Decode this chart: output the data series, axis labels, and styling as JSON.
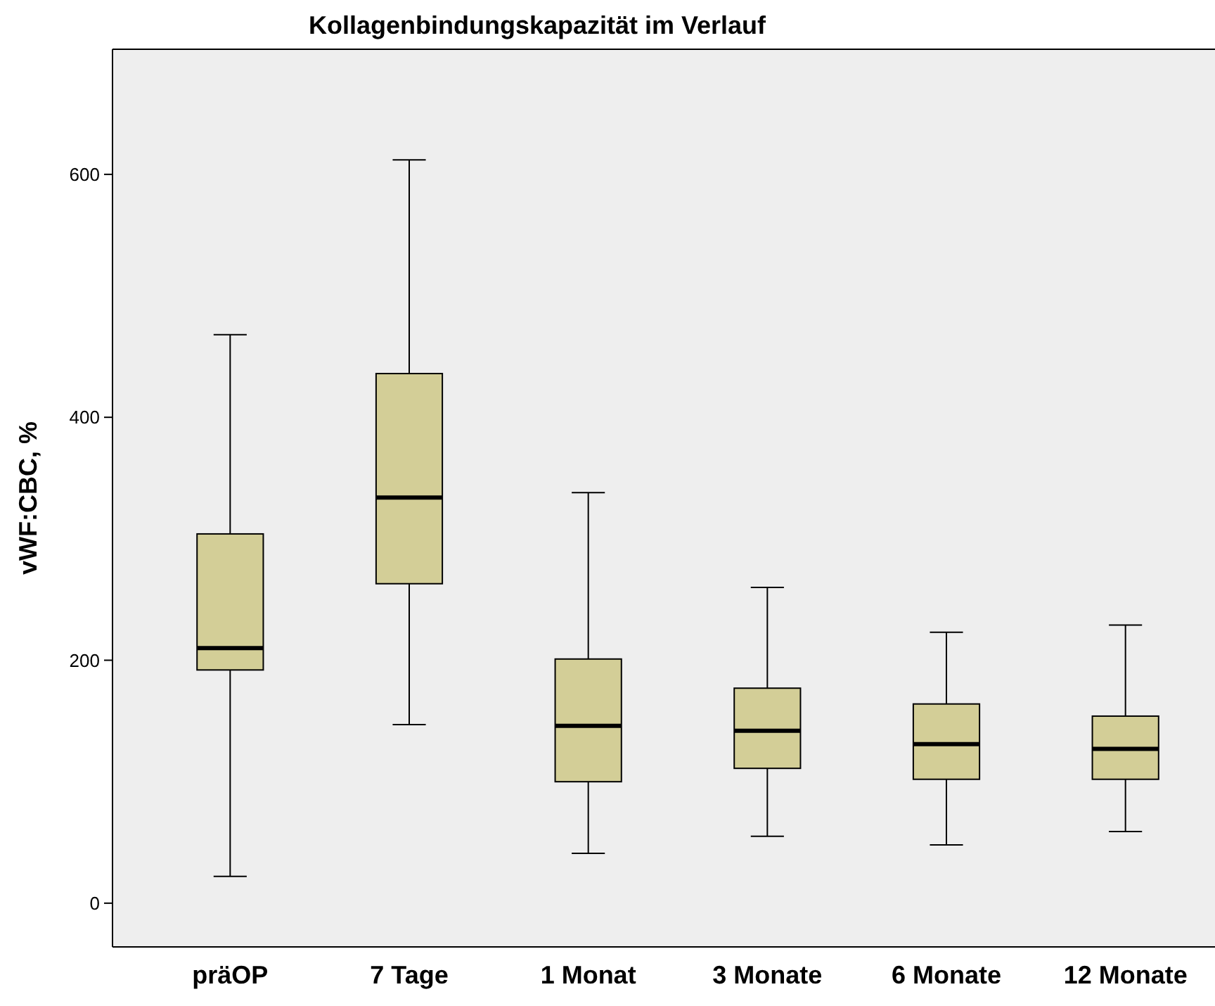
{
  "chart_data": {
    "type": "box",
    "title": "Kollagenbindungskapazität im Verlauf",
    "ylabel": "vWF:CBC, %",
    "categories": [
      "präOP",
      "7 Tage",
      "1 Monat",
      "3 Monate",
      "6 Monate",
      "12 Monate"
    ],
    "color": "#d3ce97",
    "boxes": [
      {
        "low": 22,
        "q1": 192,
        "median": 210,
        "q3": 304,
        "high": 468
      },
      {
        "low": 147,
        "q1": 263,
        "median": 334,
        "q3": 436,
        "high": 612
      },
      {
        "low": 41,
        "q1": 100,
        "median": 146,
        "q3": 201,
        "high": 338
      },
      {
        "low": 55,
        "q1": 111,
        "median": 142,
        "q3": 177,
        "high": 260
      },
      {
        "low": 48,
        "q1": 102,
        "median": 131,
        "q3": 164,
        "high": 223
      },
      {
        "low": 59,
        "q1": 102,
        "median": 127,
        "q3": 154,
        "high": 229
      }
    ],
    "ylim": [
      -36,
      703
    ],
    "yticks": [
      0,
      200,
      400,
      600
    ],
    "grid": false
  }
}
